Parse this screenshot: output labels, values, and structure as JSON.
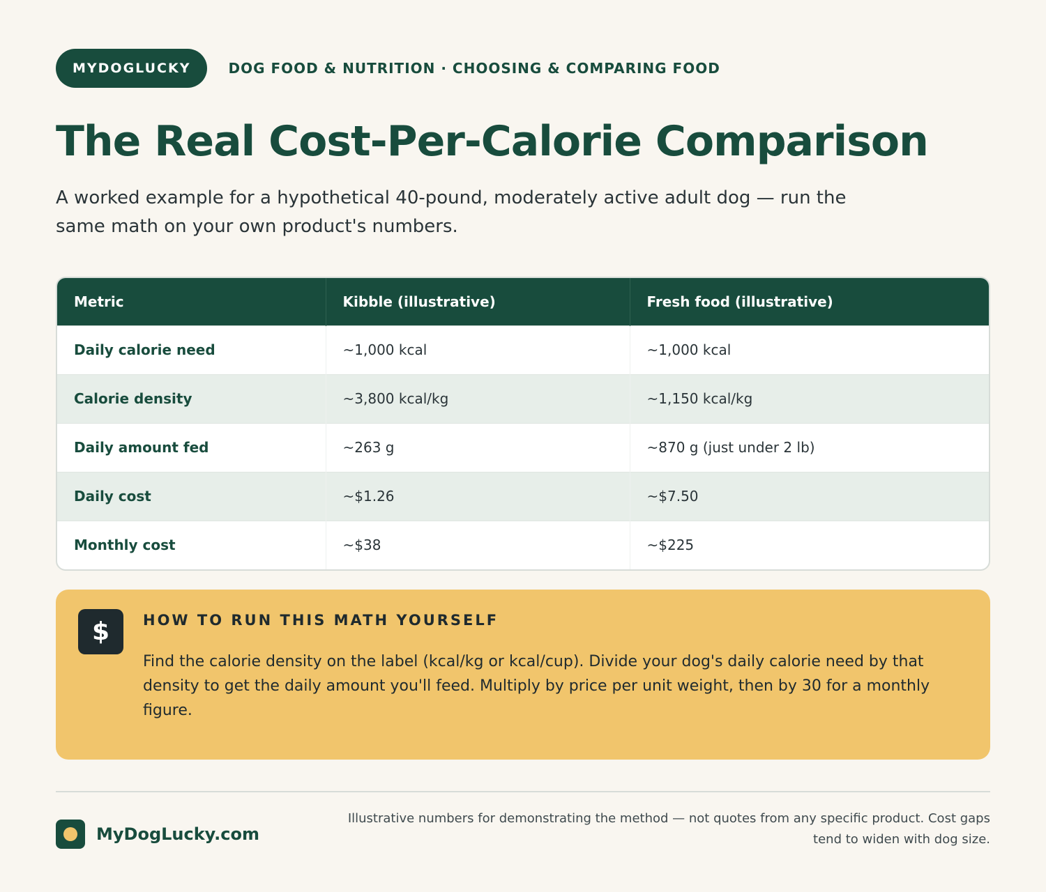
{
  "header": {
    "brand": "MYDOGLUCKY",
    "breadcrumb": "DOG FOOD & NUTRITION · CHOOSING & COMPARING FOOD"
  },
  "title": "The Real Cost-Per-Calorie Comparison",
  "subtitle": "A worked example for a hypothetical 40-pound, moderately active adult dog — run the same math on your own product's numbers.",
  "table": {
    "headers": [
      "Metric",
      "Kibble (illustrative)",
      "Fresh food (illustrative)"
    ],
    "rows": [
      [
        "Daily calorie need",
        "~1,000 kcal",
        "~1,000 kcal"
      ],
      [
        "Calorie density",
        "~3,800 kcal/kg",
        "~1,150 kcal/kg"
      ],
      [
        "Daily amount fed",
        "~263 g",
        "~870 g (just under 2 lb)"
      ],
      [
        "Daily cost",
        "~$1.26",
        "~$7.50"
      ],
      [
        "Monthly cost",
        "~$38",
        "~$225"
      ]
    ]
  },
  "callout": {
    "icon": "$",
    "title": "HOW TO RUN THIS MATH YOURSELF",
    "body": "Find the calorie density on the label (kcal/kg or kcal/cup). Divide your dog's daily calorie need by that density to get the daily amount you'll feed. Multiply by price per unit weight, then by 30 for a monthly figure."
  },
  "footer": {
    "site": "MyDogLucky.com",
    "note": "Illustrative numbers for demonstrating the method — not quotes from any specific product. Cost gaps tend to widen with dog size."
  },
  "colors": {
    "brand_green": "#184c3d",
    "accent_yellow": "#f1c56c",
    "background": "#f9f6f0"
  }
}
